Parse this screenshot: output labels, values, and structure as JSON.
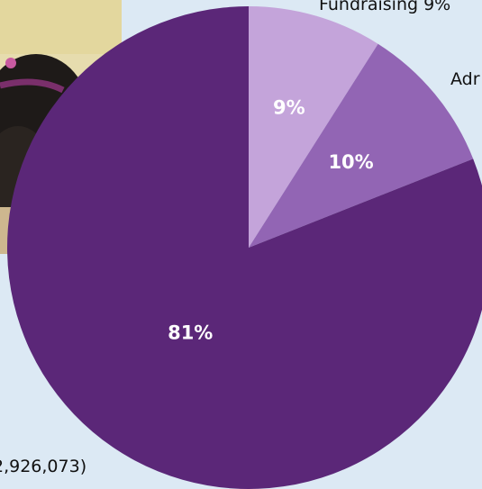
{
  "colors": {
    "background": "#dce9f4",
    "fundraising": "#c4a4da",
    "administration": "#9265b4",
    "programs": "#5b2778",
    "slice_label": "#ffffff"
  },
  "labels": {
    "fundraising": "Fundraising 9%",
    "administration": "Adr",
    "programs": "2,926,073)"
  },
  "chart_data": {
    "type": "pie",
    "title": "",
    "slices": [
      {
        "label": "Fundraising",
        "value": 9,
        "display": "9%"
      },
      {
        "label": "Administration",
        "value": 10,
        "display": "10%"
      },
      {
        "label": "",
        "value": 81,
        "display": "81%"
      }
    ]
  }
}
